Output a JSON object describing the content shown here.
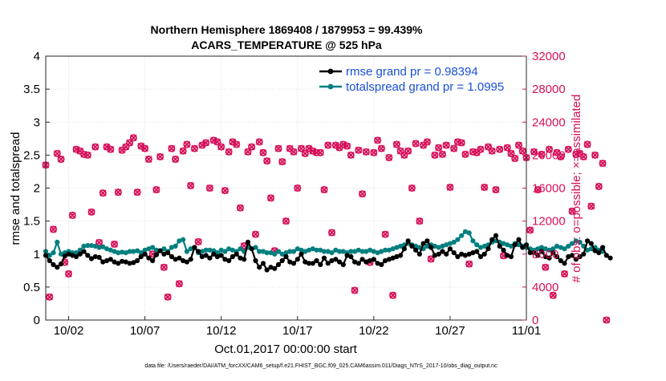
{
  "title_line1": "Northern Hemisphere 1869408 / 1879953 = 99.439%",
  "title_line2": "ACARS_TEMPERATURE @ 525 hPa",
  "footer": "data file: /Users/raeder/DAI/ATM_forcXX/CAM6_setup/f.e21.FHIST_BGC.f09_025.CAM6assim.011/Diags_NTrS_2017-10/obs_diag_output.nc",
  "colors": {
    "rmse": "#000000",
    "spread": "#007f7f",
    "obs": "#d6105a",
    "legend_text": "#1a4fd6"
  },
  "chart_data": {
    "type": "line",
    "xlabel": "Oct.01,2017 00:00:00 start",
    "ylabel_left": "rmse and totalspread",
    "ylabel_right": "# of obs: o=possible; ×=assimilated",
    "xlim": [
      0.5,
      32
    ],
    "ylim_left": [
      0,
      4
    ],
    "ylim_right": [
      0,
      32000
    ],
    "x_ticks": [
      {
        "x": 2,
        "label": "10/02"
      },
      {
        "x": 7,
        "label": "10/07"
      },
      {
        "x": 12,
        "label": "10/12"
      },
      {
        "x": 17,
        "label": "10/17"
      },
      {
        "x": 22,
        "label": "10/22"
      },
      {
        "x": 27,
        "label": "10/27"
      },
      {
        "x": 32,
        "label": "11/01"
      }
    ],
    "y_ticks_left": [
      "0",
      "0.5",
      "1",
      "1.5",
      "2",
      "2.5",
      "3",
      "3.5",
      "4"
    ],
    "y_ticks_right": [
      "0",
      "4000",
      "8000",
      "12000",
      "16000",
      "20000",
      "24000",
      "28000",
      "32000"
    ],
    "grid": true,
    "legend_position": "top-right",
    "series": [
      {
        "name": "rmse grand pr = 0.98394",
        "axis": "left",
        "x_start": 0.5,
        "x_step": 0.25,
        "values": [
          0.98,
          0.9,
          0.84,
          0.8,
          0.85,
          0.97,
          1.0,
          0.98,
          0.96,
          1.0,
          1.04,
          0.98,
          0.93,
          0.96,
          0.95,
          0.88,
          0.9,
          0.92,
          0.88,
          0.86,
          0.89,
          0.88,
          0.86,
          0.87,
          0.9,
          0.96,
          1.0,
          0.94,
          0.9,
          0.99,
          1.05,
          1.0,
          1.02,
          0.96,
          0.92,
          0.94,
          0.9,
          0.88,
          0.92,
          1.1,
          1.04,
          0.96,
          0.98,
          0.94,
          1.0,
          0.96,
          0.98,
          0.92,
          0.9,
          0.96,
          1.0,
          0.94,
          0.92,
          1.18,
          1.08,
          0.9,
          0.8,
          0.86,
          0.76,
          0.8,
          0.78,
          0.84,
          0.9,
          0.96,
          0.88,
          0.86,
          0.92,
          1.0,
          0.88,
          0.86,
          0.86,
          0.9,
          0.84,
          0.94,
          0.86,
          0.9,
          0.92,
          0.88,
          0.84,
          0.98,
          0.96,
          0.88,
          0.86,
          0.92,
          0.88,
          0.9,
          0.92,
          0.86,
          0.84,
          0.9,
          0.92,
          0.94,
          0.96,
          0.98,
          1.08,
          1.2,
          1.12,
          1.06,
          1.0,
          1.16,
          1.2,
          1.1,
          0.98,
          1.0,
          1.04,
          1.0,
          1.08,
          1.02,
          0.96,
          1.0,
          0.98,
          1.0,
          1.02,
          1.04,
          0.96,
          1.0,
          1.08,
          1.22,
          1.28,
          1.12,
          1.06,
          0.98,
          0.96,
          1.14,
          1.22,
          1.1,
          1.14,
          1.02,
          1.02,
          0.98,
          1.04,
          0.96,
          0.94,
          1.02,
          0.96,
          0.9,
          0.86,
          0.96,
          0.98,
          0.92,
          0.96,
          1.0,
          1.2,
          1.16,
          1.05,
          1.02,
          1.1,
          0.98,
          0.94
        ]
      },
      {
        "name": "totalspread grand pr = 1.0995",
        "axis": "left",
        "x_start": 0.5,
        "x_step": 0.25,
        "values": [
          1.04,
          0.98,
          1.02,
          1.18,
          1.0,
          1.02,
          1.04,
          1.02,
          1.02,
          1.06,
          1.12,
          1.13,
          1.13,
          1.12,
          1.1,
          1.11,
          1.08,
          1.06,
          1.04,
          1.02,
          1.03,
          1.02,
          1.04,
          1.04,
          1.05,
          1.02,
          1.06,
          1.08,
          1.1,
          1.06,
          1.05,
          1.08,
          1.04,
          1.1,
          1.12,
          1.2,
          1.22,
          1.04,
          1.08,
          1.1,
          1.02,
          1.04,
          1.06,
          1.06,
          1.05,
          1.02,
          1.06,
          1.04,
          1.08,
          1.06,
          1.04,
          1.08,
          1.04,
          1.1,
          1.08,
          1.1,
          1.04,
          1.04,
          1.02,
          1.02,
          1.0,
          1.04,
          1.0,
          1.02,
          1.04,
          1.04,
          1.08,
          1.06,
          1.04,
          1.06,
          1.08,
          1.06,
          1.06,
          1.04,
          1.04,
          1.02,
          1.06,
          1.04,
          1.04,
          1.02,
          1.04,
          1.04,
          1.06,
          1.04,
          1.04,
          1.06,
          1.04,
          1.02,
          1.04,
          1.06,
          1.06,
          1.08,
          1.1,
          1.12,
          1.14,
          1.16,
          1.14,
          1.12,
          1.1,
          1.08,
          1.12,
          1.14,
          1.12,
          1.1,
          1.12,
          1.14,
          1.16,
          1.18,
          1.22,
          1.28,
          1.34,
          1.32,
          1.2,
          1.14,
          1.1,
          1.12,
          1.14,
          1.18,
          1.2,
          1.18,
          1.16,
          1.14,
          1.12,
          1.16,
          1.14,
          1.12,
          1.1,
          1.08,
          1.06,
          1.08,
          1.1,
          1.08,
          1.06,
          1.08,
          1.12,
          1.1,
          1.08,
          1.12,
          1.16,
          1.2,
          1.18,
          1.12,
          1.06,
          1.08,
          1.1,
          1.06,
          1.04
        ]
      },
      {
        "name": "obs possible",
        "axis": "right",
        "x_start": 0.5,
        "x_step": 0.25,
        "values": [
          18800,
          2800,
          11000,
          20200,
          19500,
          7000,
          5600,
          12700,
          20700,
          20500,
          20100,
          20000,
          13100,
          21000,
          9400,
          15400,
          21000,
          20700,
          9200,
          15500,
          20600,
          21000,
          21500,
          22100,
          15500,
          21100,
          20800,
          19500,
          8000,
          15800,
          19800,
          6400,
          2800,
          20800,
          19500,
          4400,
          20500,
          21300,
          16300,
          20800,
          9500,
          21200,
          21500,
          16000,
          21800,
          21600,
          21000,
          15700,
          20400,
          21600,
          21300,
          13600,
          9000,
          20400,
          21000,
          10400,
          21600,
          20300,
          19300,
          14800,
          8400,
          20800,
          19200,
          12000,
          20800,
          20400,
          16000,
          20800,
          20200,
          20800,
          20500,
          20300,
          20300,
          15800,
          21200,
          10600,
          21200,
          20900,
          21300,
          21100,
          20000,
          3600,
          20600,
          15300,
          20400,
          7000,
          20300,
          21800,
          20800,
          10400,
          19700,
          3000,
          21300,
          20500,
          20000,
          20500,
          16000,
          21400,
          12000,
          21200,
          21600,
          7400,
          20000,
          20900,
          20100,
          21200,
          16100,
          20800,
          21600,
          21500,
          20100,
          6800,
          20400,
          20300,
          20700,
          16100,
          21000,
          20500,
          15800,
          20700,
          7800,
          20900,
          20200,
          19600,
          21200,
          20500,
          19700,
          10900,
          20400,
          15800,
          20100,
          6400,
          20700,
          3000,
          20300,
          19800,
          5600,
          20700,
          13200,
          20100,
          20200,
          19800,
          21300,
          13800,
          20000,
          16200,
          19000,
          0
        ]
      }
    ]
  }
}
